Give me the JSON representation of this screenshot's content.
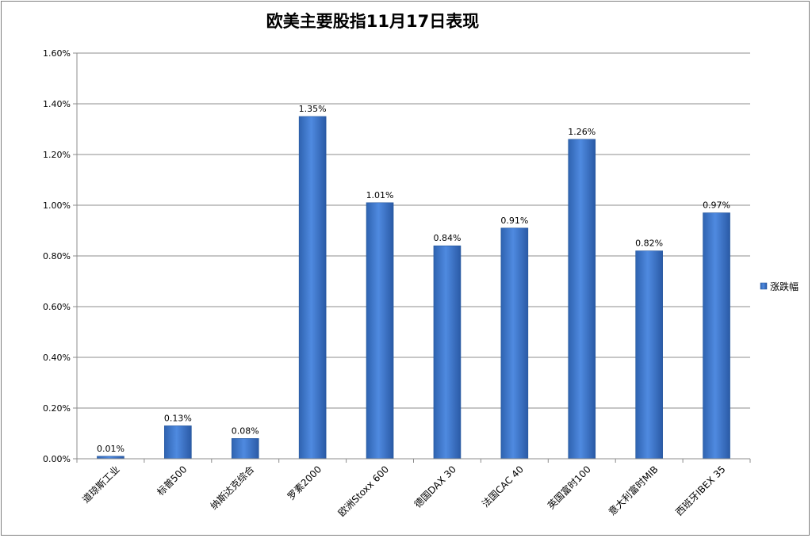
{
  "chart_data": {
    "type": "bar",
    "title": "欧美主要股指11月17日表现",
    "categories": [
      "道琼斯工业",
      "标普500",
      "纳斯达克综合",
      "罗素2000",
      "欧洲Stoxx 600",
      "德国DAX 30",
      "法国CAC 40",
      "英国富时100",
      "意大利富时MIB",
      "西班牙IBEX 35"
    ],
    "series": [
      {
        "name": "涨跌幅",
        "values": [
          0.01,
          0.13,
          0.08,
          1.35,
          1.01,
          0.84,
          0.91,
          1.26,
          0.82,
          0.97
        ],
        "data_labels": [
          "0.01%",
          "0.13%",
          "0.08%",
          "1.35%",
          "1.01%",
          "0.84%",
          "0.91%",
          "1.26%",
          "0.82%",
          "0.97%"
        ]
      }
    ],
    "yticks": [
      0,
      0.2,
      0.4,
      0.6,
      0.8,
      1.0,
      1.2,
      1.4,
      1.6
    ],
    "ytick_labels": [
      "0.00%",
      "0.20%",
      "0.40%",
      "0.60%",
      "0.80%",
      "1.00%",
      "1.20%",
      "1.40%",
      "1.60%"
    ],
    "ylim": [
      0,
      1.6
    ],
    "grid": true,
    "legend_position": "right",
    "colors": {
      "bar": "#3d7ad0",
      "bar_dark": "#23569c",
      "bar_light": "#6a9ee0",
      "grid": "#8c8c8c",
      "axis": "#8c8c8c"
    }
  }
}
